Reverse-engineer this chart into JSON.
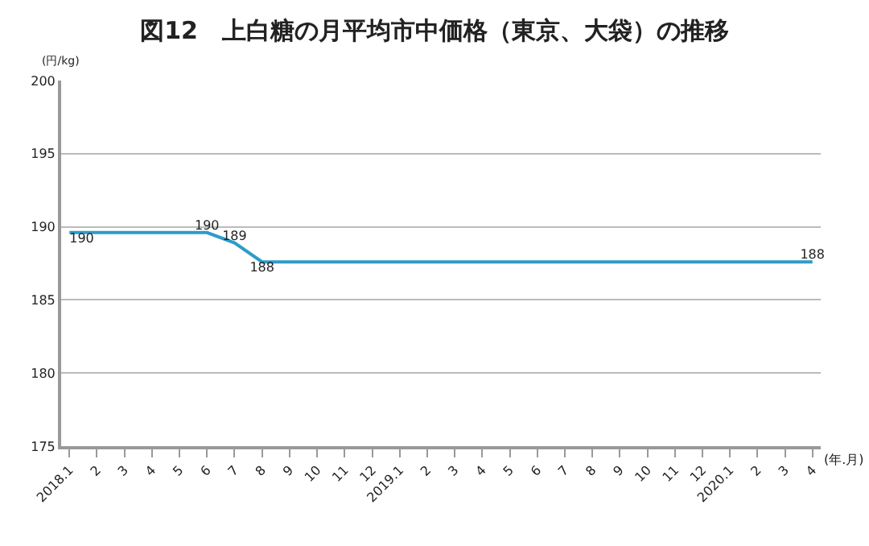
{
  "chart_data": {
    "type": "line",
    "title": "図12　上白糖の月平均市中価格（東京、大袋）の推移",
    "xlabel": "(年.月)",
    "ylabel": "(円/kg)",
    "categories": [
      "2018.1",
      "2",
      "3",
      "4",
      "5",
      "6",
      "7",
      "8",
      "9",
      "10",
      "11",
      "12",
      "2019.1",
      "2",
      "3",
      "4",
      "5",
      "6",
      "7",
      "8",
      "9",
      "10",
      "11",
      "12",
      "2020.1",
      "2",
      "3",
      "4"
    ],
    "series": [
      {
        "color": "#2e9cc9",
        "values": [
          189.6,
          189.6,
          189.6,
          189.6,
          189.6,
          189.6,
          188.9,
          187.6,
          187.6,
          187.6,
          187.6,
          187.6,
          187.6,
          187.6,
          187.6,
          187.6,
          187.6,
          187.6,
          187.6,
          187.6,
          187.6,
          187.6,
          187.6,
          187.6,
          187.6,
          187.6,
          187.6,
          187.6
        ],
        "value_labels": [
          "190",
          null,
          null,
          null,
          null,
          "190",
          "189",
          "188",
          null,
          null,
          null,
          null,
          null,
          null,
          null,
          null,
          null,
          null,
          null,
          null,
          null,
          null,
          null,
          null,
          null,
          null,
          null,
          "188"
        ]
      }
    ],
    "ylim": [
      175,
      200
    ],
    "yticks": [
      175,
      180,
      185,
      190,
      195,
      200
    ],
    "grid": "y",
    "marker": "none",
    "line_style": "solid"
  }
}
